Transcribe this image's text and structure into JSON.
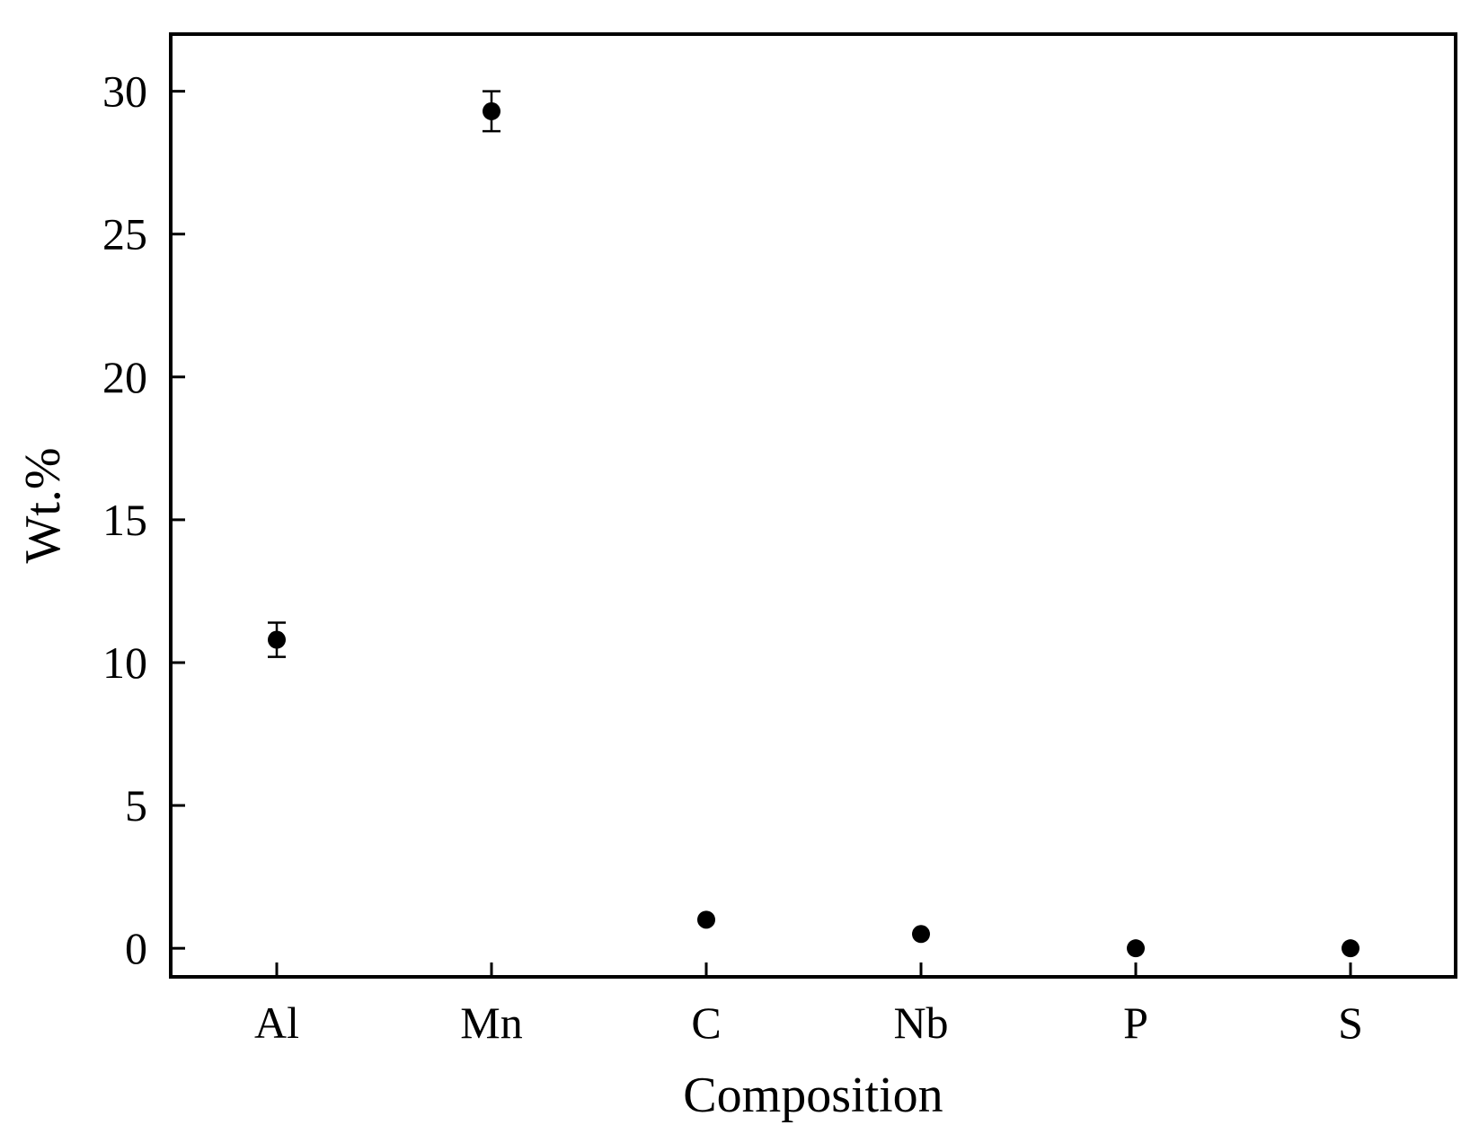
{
  "chart_data": {
    "type": "scatter",
    "title": "",
    "xlabel": "Composition",
    "ylabel": "Wt.%",
    "categories": [
      "Al",
      "Mn",
      "C",
      "Nb",
      "P",
      "S"
    ],
    "series": [
      {
        "values": [
          10.8,
          29.3,
          1.0,
          0.5,
          0.0,
          0.0
        ],
        "error": [
          0.6,
          0.7,
          null,
          null,
          null,
          null
        ]
      }
    ],
    "ylim": [
      -1,
      32
    ],
    "yticks": [
      0,
      5,
      10,
      15,
      20,
      25,
      30
    ],
    "grid": false,
    "legend": "none"
  },
  "colors": {
    "marker": "#000000",
    "axis": "#000000",
    "background": "#ffffff"
  }
}
